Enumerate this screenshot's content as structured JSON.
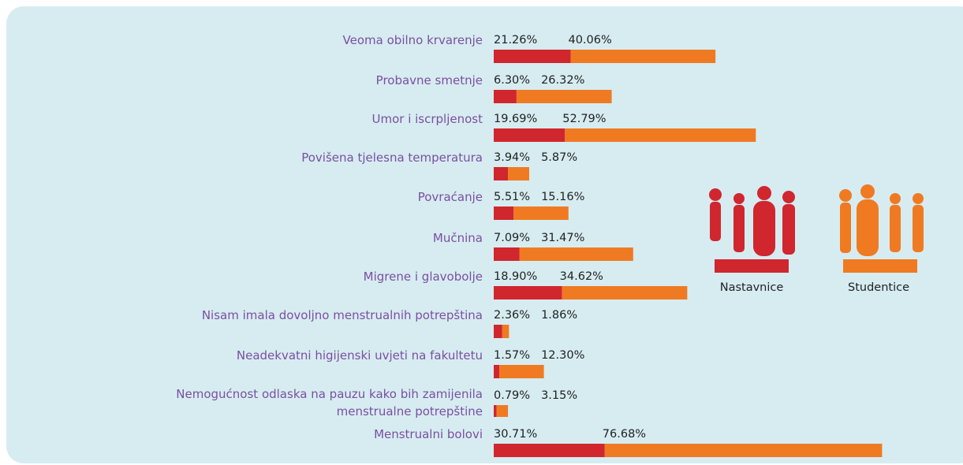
{
  "chart_data": {
    "type": "stacked-bar-horizontal",
    "categories": [
      "Veoma obilno krvarenje",
      "Probavne smetnje",
      "Umor i iscrpljenost",
      "Povišena tjelesna temperatura",
      "Povraćanje",
      "Mučnina",
      "Migrene i glavobolje",
      "Nisam imala dovoljno menstrualnih potrepština",
      "Neadekvatni higijenski uvjeti na fakultetu",
      "Nemogućnost odlaska na pauzu kako bih zamijenila\nmenstrualne potrepštine",
      "Menstrualni bolovi"
    ],
    "series": [
      {
        "name": "Nastavnice",
        "color": "#d0262e",
        "values": [
          21.26,
          6.3,
          19.69,
          3.94,
          5.51,
          7.09,
          18.9,
          2.36,
          1.57,
          0.79,
          30.71
        ],
        "value_labels": [
          "21.26%",
          "6.30%",
          "19.69%",
          "3.94%",
          "5.51%",
          "7.09%",
          "18.90%",
          "2.36%",
          "1.57%",
          "0.79%",
          "30.71%"
        ]
      },
      {
        "name": "Studentice",
        "color": "#f07a22",
        "values": [
          40.06,
          26.32,
          52.79,
          5.87,
          15.16,
          31.47,
          34.62,
          1.86,
          12.3,
          3.15,
          76.68
        ],
        "value_labels": [
          "40.06%",
          "26.32%",
          "52.79%",
          "5.87%",
          "15.16%",
          "31.47%",
          "34.62%",
          "1.86%",
          "12.30%",
          "3.15%",
          "76.68%"
        ]
      }
    ]
  }
}
